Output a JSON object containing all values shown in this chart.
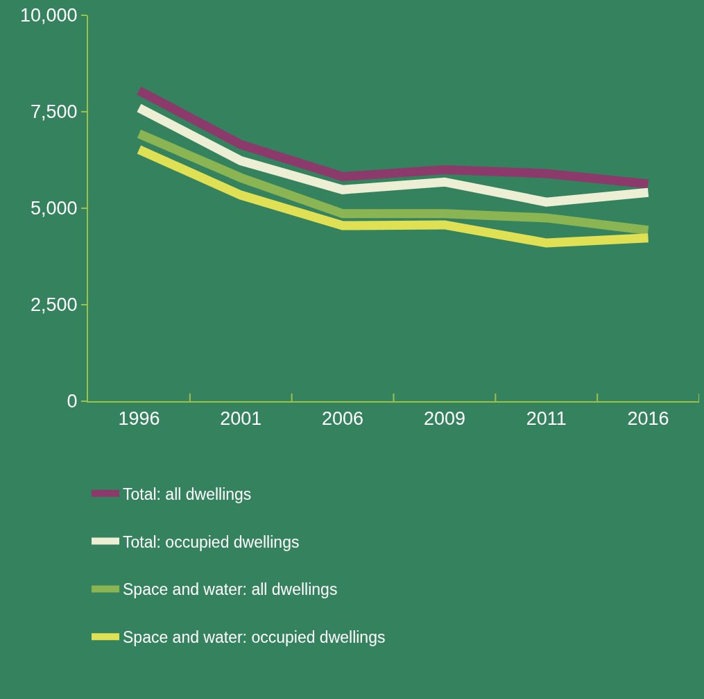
{
  "chart_data": {
    "type": "line",
    "categories": [
      "1996",
      "2001",
      "2006",
      "2009",
      "2011",
      "2016"
    ],
    "ylim": [
      0,
      10000
    ],
    "yticks": [
      {
        "value": 0,
        "label": "0"
      },
      {
        "value": 2500,
        "label": "2,500"
      },
      {
        "value": 5000,
        "label": "5,000"
      },
      {
        "value": 7500,
        "label": "7,500"
      },
      {
        "value": 10000,
        "label": "10,000"
      }
    ],
    "grid": false,
    "legend": "bottom",
    "marker": "none",
    "line_style": "solid",
    "series": [
      {
        "name": "Total: all dwellings",
        "color": "#8b3a6b",
        "values": [
          8050,
          6650,
          5820,
          6000,
          5900,
          5630
        ]
      },
      {
        "name": "Total: occupied dwellings",
        "color": "#ecefd4",
        "values": [
          7600,
          6230,
          5480,
          5680,
          5160,
          5410
        ]
      },
      {
        "name": "Space and water: all dwellings",
        "color": "#8bb553",
        "values": [
          6930,
          5790,
          4860,
          4860,
          4750,
          4430
        ]
      },
      {
        "name": "Space and water: occupied dwellings",
        "color": "#e0e055",
        "values": [
          6520,
          5340,
          4550,
          4570,
          4100,
          4230
        ]
      }
    ]
  }
}
